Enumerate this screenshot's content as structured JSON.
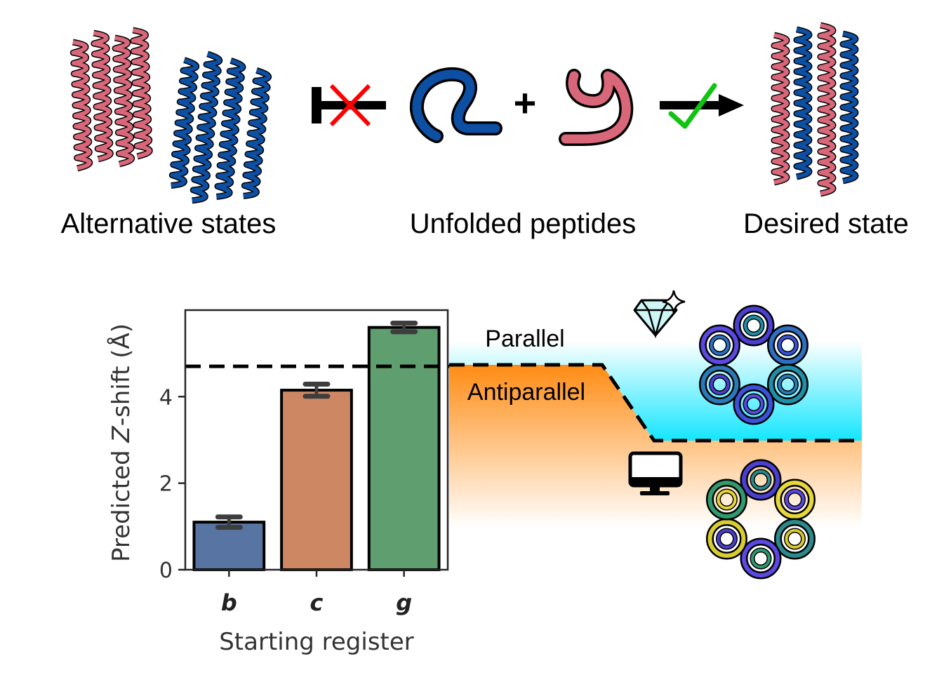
{
  "top": {
    "alternative_label": "Alternative states",
    "unfolded_label": "Unfolded peptides",
    "desired_label": "Desired state",
    "plus": "+"
  },
  "colors": {
    "pink": "#d9677a",
    "blue": "#0d4fa3",
    "cross": "#ff0000",
    "check": "#12c412",
    "parallel_region": "#14e6ff",
    "antiparallel_region": "#ff8c14"
  },
  "icons": [
    "helix-bundle-pink",
    "helix-bundle-blue",
    "blocked-arrow",
    "cross-icon",
    "check-icon",
    "diamond-sparkle-icon",
    "computer-monitor-icon",
    "helical-wheel-parallel",
    "helical-wheel-antiparallel"
  ],
  "regions": {
    "parallel": "Parallel",
    "antiparallel": "Antiparallel"
  },
  "chart_data": {
    "type": "bar",
    "categories": [
      "b",
      "c",
      "g"
    ],
    "values": [
      1.1,
      4.15,
      5.6
    ],
    "errors": [
      0.12,
      0.14,
      0.1
    ],
    "colors": [
      "#5874a2",
      "#cd8863",
      "#5f9e6e"
    ],
    "xlabel": "Starting register",
    "ylabel_prefix": "Predicted ",
    "ylabel_var": "Z",
    "ylabel_suffix": "-shift (Å)",
    "ylim": [
      0,
      6.0
    ],
    "yticks": [
      0,
      2,
      4
    ],
    "threshold": 4.7,
    "threshold_low": 2.95
  }
}
